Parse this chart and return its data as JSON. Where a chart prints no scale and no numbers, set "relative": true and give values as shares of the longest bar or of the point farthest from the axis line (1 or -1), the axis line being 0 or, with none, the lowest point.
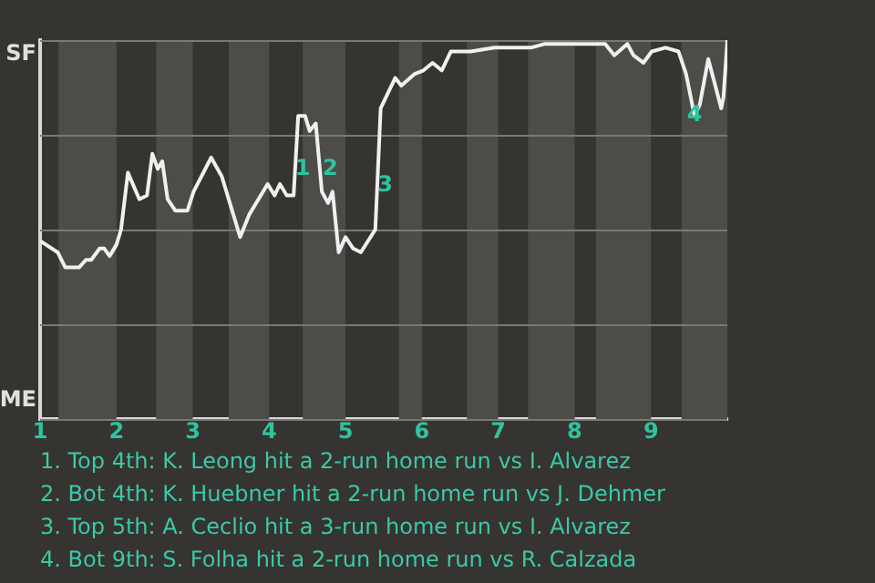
{
  "chart_data": {
    "type": "line",
    "x": [
      1,
      1.23,
      1.33,
      1.51,
      1.6,
      1.67,
      1.78,
      1.84,
      1.91,
      2,
      2.06,
      2.15,
      2.3,
      2.4,
      2.47,
      2.54,
      2.6,
      2.67,
      2.77,
      2.93,
      3.01,
      3.24,
      3.38,
      3.62,
      3.74,
      3.98,
      4.07,
      4.14,
      4.23,
      4.32,
      4.38,
      4.47,
      4.53,
      4.61,
      4.69,
      4.77,
      4.83,
      4.91,
      5,
      5.1,
      5.2,
      5.39,
      5.46,
      5.65,
      5.73,
      5.9,
      6.02,
      6.14,
      6.26,
      6.38,
      6.64,
      6.95,
      7.43,
      7.61,
      7.96,
      8.1,
      8.23,
      8.4,
      8.52,
      8.69,
      8.77,
      8.9,
      9.01,
      9.19,
      9.36,
      9.46,
      9.57,
      9.64,
      9.75,
      9.92,
      9.95,
      10
    ],
    "series": [
      {
        "color": "#f0f0f0",
        "values": [
          0.47,
          0.44,
          0.4,
          0.4,
          0.42,
          0.42,
          0.45,
          0.45,
          0.43,
          0.46,
          0.5,
          0.65,
          0.58,
          0.59,
          0.7,
          0.66,
          0.68,
          0.58,
          0.55,
          0.55,
          0.6,
          0.69,
          0.64,
          0.48,
          0.54,
          0.62,
          0.59,
          0.62,
          0.59,
          0.59,
          0.8,
          0.8,
          0.76,
          0.78,
          0.6,
          0.57,
          0.6,
          0.44,
          0.48,
          0.45,
          0.44,
          0.5,
          0.82,
          0.9,
          0.88,
          0.91,
          0.92,
          0.94,
          0.92,
          0.97,
          0.97,
          0.98,
          0.98,
          0.99,
          0.99,
          0.99,
          0.99,
          0.99,
          0.96,
          0.99,
          0.96,
          0.94,
          0.97,
          0.98,
          0.97,
          0.91,
          0.8,
          0.83,
          0.95,
          0.82,
          0.85,
          1
        ]
      }
    ],
    "relative": true,
    "xlim": [
      1,
      10
    ],
    "xticks": [
      1,
      2,
      3,
      4,
      5,
      6,
      7,
      8,
      9
    ],
    "grid": "y",
    "legend": false,
    "marker": "none",
    "line_style": "solid",
    "bands": [
      {
        "axis": "x",
        "from": 1.24,
        "to": 2,
        "color": "#4d4c49"
      },
      {
        "axis": "x",
        "from": 2.52,
        "to": 3,
        "color": "#4d4c49"
      },
      {
        "axis": "x",
        "from": 3.47,
        "to": 4,
        "color": "#4d4c49"
      },
      {
        "axis": "x",
        "from": 4.44,
        "to": 5,
        "color": "#4d4c49"
      },
      {
        "axis": "x",
        "from": 5.7,
        "to": 6,
        "color": "#4d4c49"
      },
      {
        "axis": "x",
        "from": 6.59,
        "to": 7,
        "color": "#4d4c49"
      },
      {
        "axis": "x",
        "from": 7.39,
        "to": 8,
        "color": "#4d4c49"
      },
      {
        "axis": "x",
        "from": 8.28,
        "to": 9,
        "color": "#4d4c49"
      },
      {
        "axis": "x",
        "from": 9.4,
        "to": 10,
        "color": "#4d4c49"
      }
    ],
    "annotations": [
      "SF",
      "ME",
      {
        "text": "1",
        "x": 4.44,
        "y": 0.66
      },
      {
        "text": "2",
        "x": 4.8,
        "y": 0.66
      },
      {
        "text": "3",
        "x": 5.52,
        "y": 0.615
      },
      {
        "text": "4",
        "x": 9.57,
        "y": 0.8
      },
      "1. Top 4th: K. Leong hit a 2-run home run vs I. Alvarez",
      "2. Bot 4th: K. Huebner hit a 2-run home run vs J. Dehmer",
      "3. Top 5th: A. Ceclio hit a 3-run home run vs I. Alvarez",
      "4. Bot 9th: S. Folha hit a 2-run home run vs R. Calzada"
    ]
  }
}
